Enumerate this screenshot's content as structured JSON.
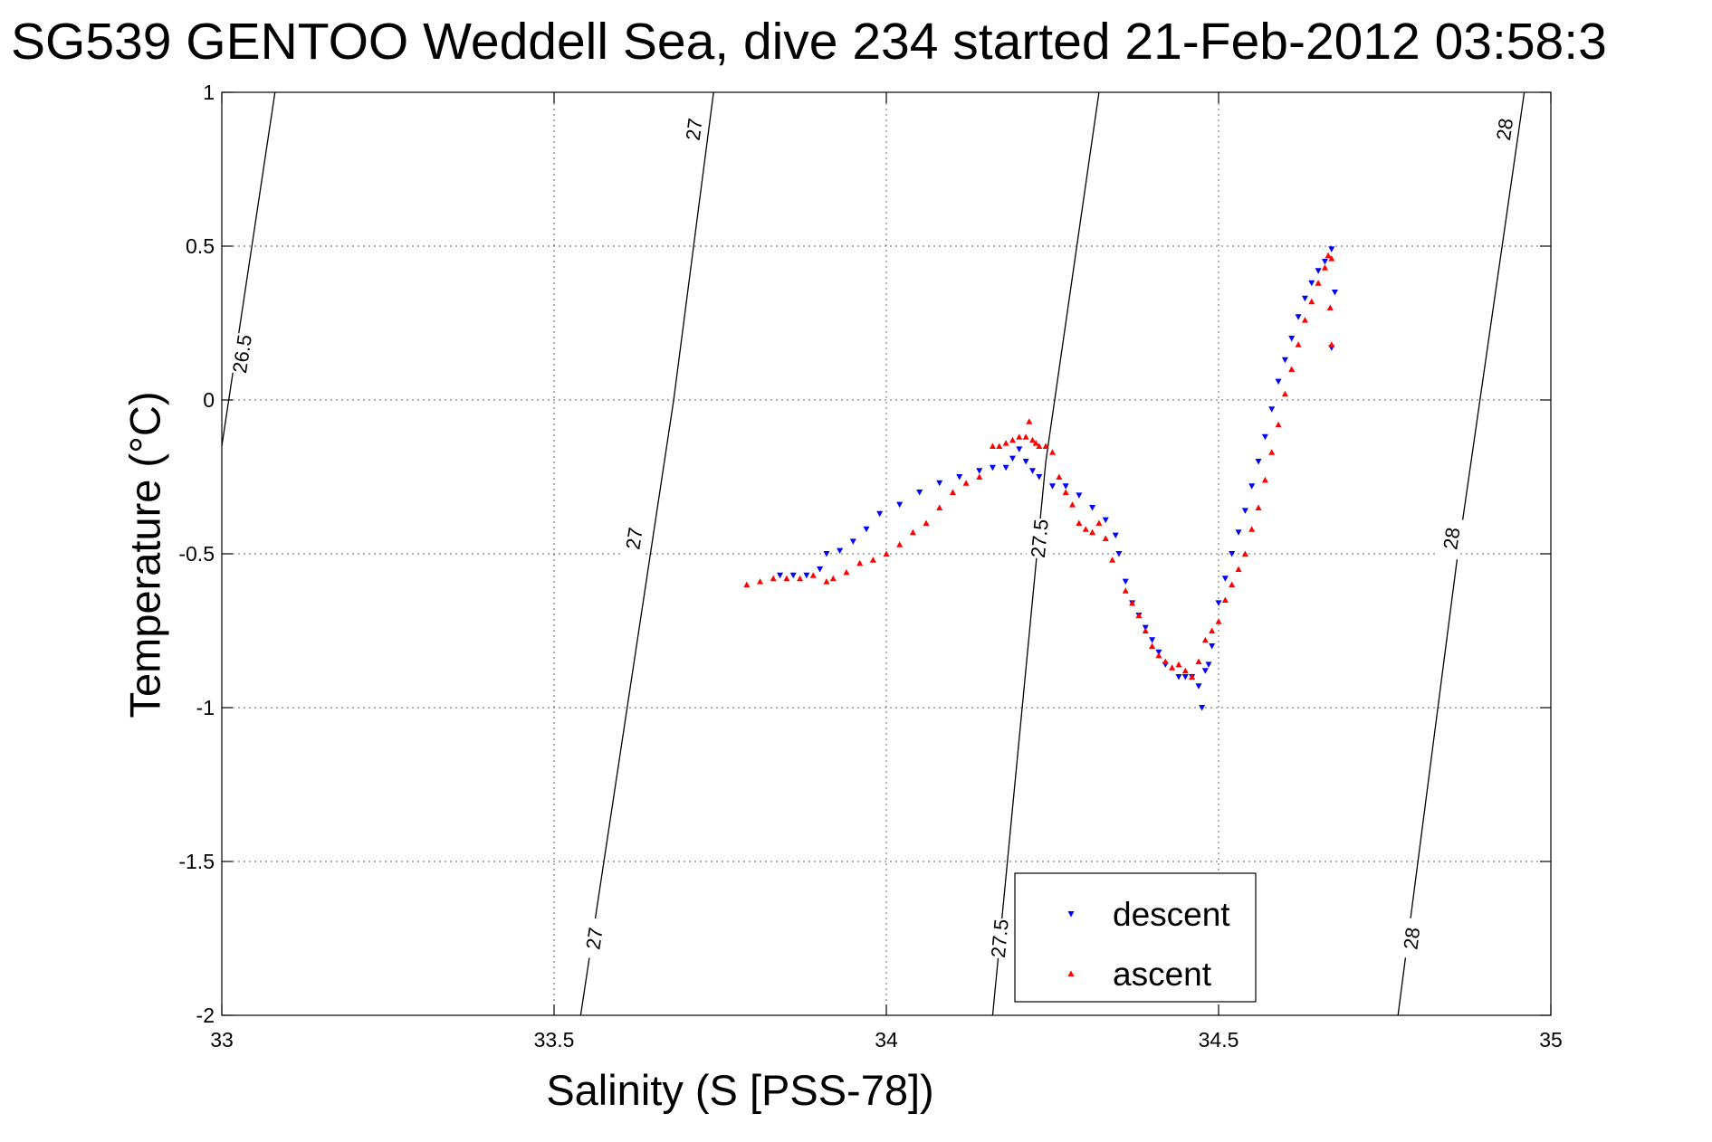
{
  "chart_data": {
    "type": "scatter",
    "title": "SG539 GENTOO Weddell Sea, dive 234 started 21-Feb-2012 03:58:3",
    "xlabel": "Salinity (S [PSS-78])",
    "ylabel": "Temperature (°C)",
    "xlim": [
      33,
      35
    ],
    "ylim": [
      -2,
      1
    ],
    "xticks": [
      33,
      33.5,
      34,
      34.5,
      35
    ],
    "yticks": [
      -2,
      -1.5,
      -1,
      -0.5,
      0,
      0.5,
      1
    ],
    "grid": true,
    "legend_position": "bottom-right",
    "density_contours": [
      {
        "label": "26.5",
        "points": [
          [
            33.0,
            -0.15
          ],
          [
            33.08,
            1.0
          ]
        ],
        "label_positions": [
          [
            33.03,
            0.15
          ]
        ]
      },
      {
        "label": "27",
        "points": [
          [
            33.54,
            -2.0
          ],
          [
            33.68,
            0.0
          ],
          [
            33.74,
            1.0
          ]
        ],
        "label_positions": [
          [
            33.56,
            -1.75
          ],
          [
            33.62,
            -0.45
          ],
          [
            33.71,
            0.88
          ]
        ]
      },
      {
        "label": "27.5",
        "points": [
          [
            34.16,
            -2.0
          ],
          [
            34.24,
            -0.2
          ],
          [
            34.32,
            1.0
          ]
        ],
        "label_positions": [
          [
            34.17,
            -1.75
          ],
          [
            34.23,
            -0.45
          ]
        ]
      },
      {
        "label": "28",
        "points": [
          [
            34.77,
            -2.0
          ],
          [
            34.86,
            -0.5
          ],
          [
            34.96,
            1.0
          ]
        ],
        "label_positions": [
          [
            34.79,
            -1.75
          ],
          [
            34.85,
            -0.45
          ],
          [
            34.93,
            0.88
          ]
        ]
      }
    ],
    "series": [
      {
        "name": "descent",
        "color": "#0000ff",
        "marker": "triangle-down",
        "x": [
          33.84,
          33.86,
          33.88,
          33.9,
          33.91,
          33.93,
          33.95,
          33.97,
          33.99,
          34.02,
          34.05,
          34.08,
          34.11,
          34.14,
          34.16,
          34.18,
          34.19,
          34.2,
          34.21,
          34.22,
          34.23,
          34.25,
          34.27,
          34.29,
          34.31,
          34.33,
          34.345,
          34.35,
          34.36,
          34.37,
          34.38,
          34.39,
          34.4,
          34.41,
          34.42,
          34.44,
          34.45,
          34.46,
          34.47,
          34.475,
          34.48,
          34.485,
          34.49,
          34.5,
          34.51,
          34.52,
          34.53,
          34.54,
          34.55,
          34.56,
          34.57,
          34.58,
          34.59,
          34.6,
          34.61,
          34.62,
          34.63,
          34.64,
          34.65,
          34.66,
          34.67,
          34.675,
          34.67
        ],
        "y": [
          -0.57,
          -0.57,
          -0.57,
          -0.55,
          -0.5,
          -0.49,
          -0.46,
          -0.42,
          -0.37,
          -0.34,
          -0.3,
          -0.27,
          -0.25,
          -0.23,
          -0.22,
          -0.22,
          -0.19,
          -0.16,
          -0.2,
          -0.23,
          -0.25,
          -0.28,
          -0.28,
          -0.31,
          -0.35,
          -0.39,
          -0.44,
          -0.5,
          -0.59,
          -0.66,
          -0.7,
          -0.74,
          -0.78,
          -0.82,
          -0.86,
          -0.9,
          -0.9,
          -0.9,
          -0.93,
          -1.0,
          -0.88,
          -0.86,
          -0.8,
          -0.66,
          -0.58,
          -0.5,
          -0.43,
          -0.36,
          -0.28,
          -0.2,
          -0.12,
          -0.03,
          0.06,
          0.13,
          0.2,
          0.27,
          0.33,
          0.38,
          0.42,
          0.45,
          0.49,
          0.35,
          0.17
        ]
      },
      {
        "name": "ascent",
        "color": "#ff0000",
        "marker": "triangle-up",
        "x": [
          33.79,
          33.81,
          33.83,
          33.85,
          33.87,
          33.89,
          33.91,
          33.92,
          33.94,
          33.96,
          33.98,
          34.0,
          34.02,
          34.04,
          34.06,
          34.08,
          34.1,
          34.12,
          34.14,
          34.16,
          34.17,
          34.18,
          34.19,
          34.2,
          34.21,
          34.215,
          34.22,
          34.225,
          34.23,
          34.24,
          34.25,
          34.26,
          34.27,
          34.28,
          34.29,
          34.3,
          34.31,
          34.32,
          34.33,
          34.34,
          34.36,
          34.37,
          34.38,
          34.39,
          34.4,
          34.41,
          34.42,
          34.43,
          34.44,
          34.45,
          34.46,
          34.47,
          34.48,
          34.49,
          34.5,
          34.51,
          34.52,
          34.53,
          34.54,
          34.55,
          34.56,
          34.57,
          34.58,
          34.59,
          34.6,
          34.61,
          34.62,
          34.63,
          34.64,
          34.65,
          34.66,
          34.665,
          34.67,
          34.668,
          34.67
        ],
        "y": [
          -0.6,
          -0.59,
          -0.58,
          -0.58,
          -0.58,
          -0.57,
          -0.59,
          -0.58,
          -0.56,
          -0.53,
          -0.52,
          -0.5,
          -0.47,
          -0.43,
          -0.4,
          -0.35,
          -0.3,
          -0.27,
          -0.25,
          -0.15,
          -0.15,
          -0.14,
          -0.13,
          -0.12,
          -0.12,
          -0.07,
          -0.13,
          -0.14,
          -0.15,
          -0.15,
          -0.17,
          -0.25,
          -0.3,
          -0.34,
          -0.4,
          -0.42,
          -0.43,
          -0.4,
          -0.45,
          -0.52,
          -0.62,
          -0.66,
          -0.7,
          -0.75,
          -0.8,
          -0.83,
          -0.85,
          -0.87,
          -0.86,
          -0.88,
          -0.9,
          -0.85,
          -0.78,
          -0.75,
          -0.72,
          -0.65,
          -0.6,
          -0.55,
          -0.5,
          -0.42,
          -0.35,
          -0.26,
          -0.17,
          -0.08,
          0.02,
          0.1,
          0.18,
          0.26,
          0.32,
          0.38,
          0.43,
          0.47,
          0.46,
          0.3,
          0.18
        ]
      }
    ]
  }
}
